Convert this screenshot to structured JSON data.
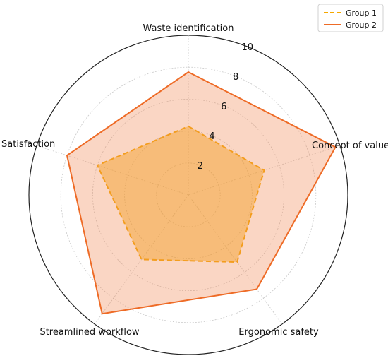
{
  "chart_data": {
    "type": "radar",
    "axes": [
      "Waste identification",
      "Concept of value",
      "Ergonomic safety",
      "Streamlined workflow",
      "Satisfaction"
    ],
    "series": [
      {
        "name": "Group 1",
        "values": [
          4.3,
          5.0,
          5.2,
          5.0,
          6.0
        ],
        "color": "#f5a800",
        "line_style": "dashed",
        "fill": "#f5a800"
      },
      {
        "name": "Group 2",
        "values": [
          7.7,
          9.7,
          7.3,
          9.2,
          8.0
        ],
        "color": "#ee6b26",
        "line_style": "solid",
        "fill": "#f08a55"
      }
    ],
    "rlim": [
      0,
      10
    ],
    "radial_ticks": [
      2,
      4,
      6,
      8,
      10
    ],
    "grid": true,
    "legend_position": "top-right"
  }
}
